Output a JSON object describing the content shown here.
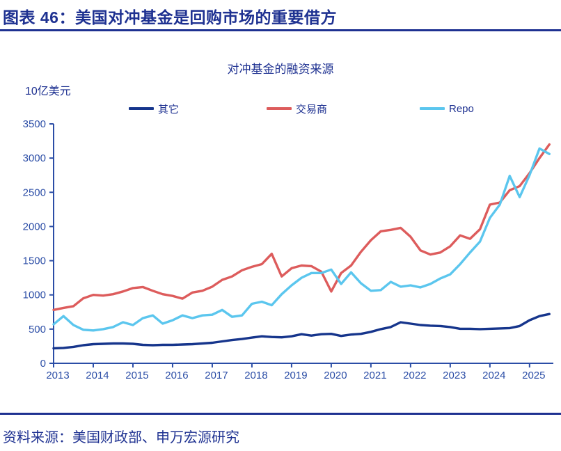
{
  "header": {
    "title": "图表 46：美国对冲基金是回购市场的重要借方"
  },
  "footer": {
    "source": "资料来源：美国财政部、申万宏源研究"
  },
  "colors": {
    "accent_blue": "#1E3191",
    "axis_blue": "#2B4DA6",
    "series_other": "#16358C",
    "series_dealer": "#DD5C5C",
    "series_repo": "#5BC6EE"
  },
  "chart_data": {
    "type": "line",
    "title": "对冲基金的融资来源",
    "unit_label": "10亿美元",
    "xlabel": "",
    "ylabel": "10亿美元",
    "ylim": [
      0,
      3500
    ],
    "yticks": [
      0,
      500,
      1000,
      1500,
      2000,
      2500,
      3000,
      3500
    ],
    "xticks": [
      2013,
      2014,
      2015,
      2016,
      2017,
      2018,
      2019,
      2020,
      2021,
      2022,
      2023,
      2024,
      2025
    ],
    "xlim": [
      2013,
      2025.6
    ],
    "x_start": 2013.0,
    "x_step": 0.25,
    "grid": false,
    "legend_position": "top",
    "series": [
      {
        "key": "other",
        "name": "其它",
        "color": "#16358C",
        "values": [
          220,
          225,
          240,
          265,
          280,
          285,
          290,
          290,
          285,
          270,
          265,
          270,
          270,
          275,
          280,
          290,
          300,
          320,
          340,
          355,
          375,
          395,
          385,
          380,
          395,
          425,
          405,
          425,
          430,
          400,
          420,
          430,
          460,
          500,
          530,
          600,
          580,
          560,
          550,
          545,
          530,
          505,
          505,
          500,
          505,
          510,
          515,
          545,
          630,
          690,
          720
        ]
      },
      {
        "key": "dealer",
        "name": "交易商",
        "color": "#DD5C5C",
        "values": [
          780,
          810,
          835,
          950,
          1000,
          990,
          1010,
          1050,
          1100,
          1115,
          1060,
          1010,
          985,
          945,
          1035,
          1060,
          1120,
          1220,
          1270,
          1360,
          1410,
          1450,
          1600,
          1270,
          1390,
          1430,
          1420,
          1340,
          1050,
          1320,
          1430,
          1630,
          1800,
          1930,
          1950,
          1980,
          1850,
          1650,
          1590,
          1620,
          1710,
          1870,
          1820,
          1960,
          2320,
          2350,
          2530,
          2590,
          2780,
          3000,
          3200
        ]
      },
      {
        "key": "repo",
        "name": "Repo",
        "color": "#5BC6EE",
        "values": [
          570,
          690,
          560,
          490,
          480,
          500,
          530,
          600,
          560,
          660,
          700,
          580,
          630,
          700,
          660,
          700,
          710,
          780,
          680,
          700,
          870,
          900,
          850,
          1010,
          1140,
          1250,
          1320,
          1320,
          1370,
          1160,
          1330,
          1170,
          1060,
          1070,
          1190,
          1120,
          1140,
          1110,
          1160,
          1240,
          1300,
          1450,
          1620,
          1780,
          2125,
          2320,
          2740,
          2430,
          2750,
          3140,
          3060
        ]
      }
    ]
  }
}
